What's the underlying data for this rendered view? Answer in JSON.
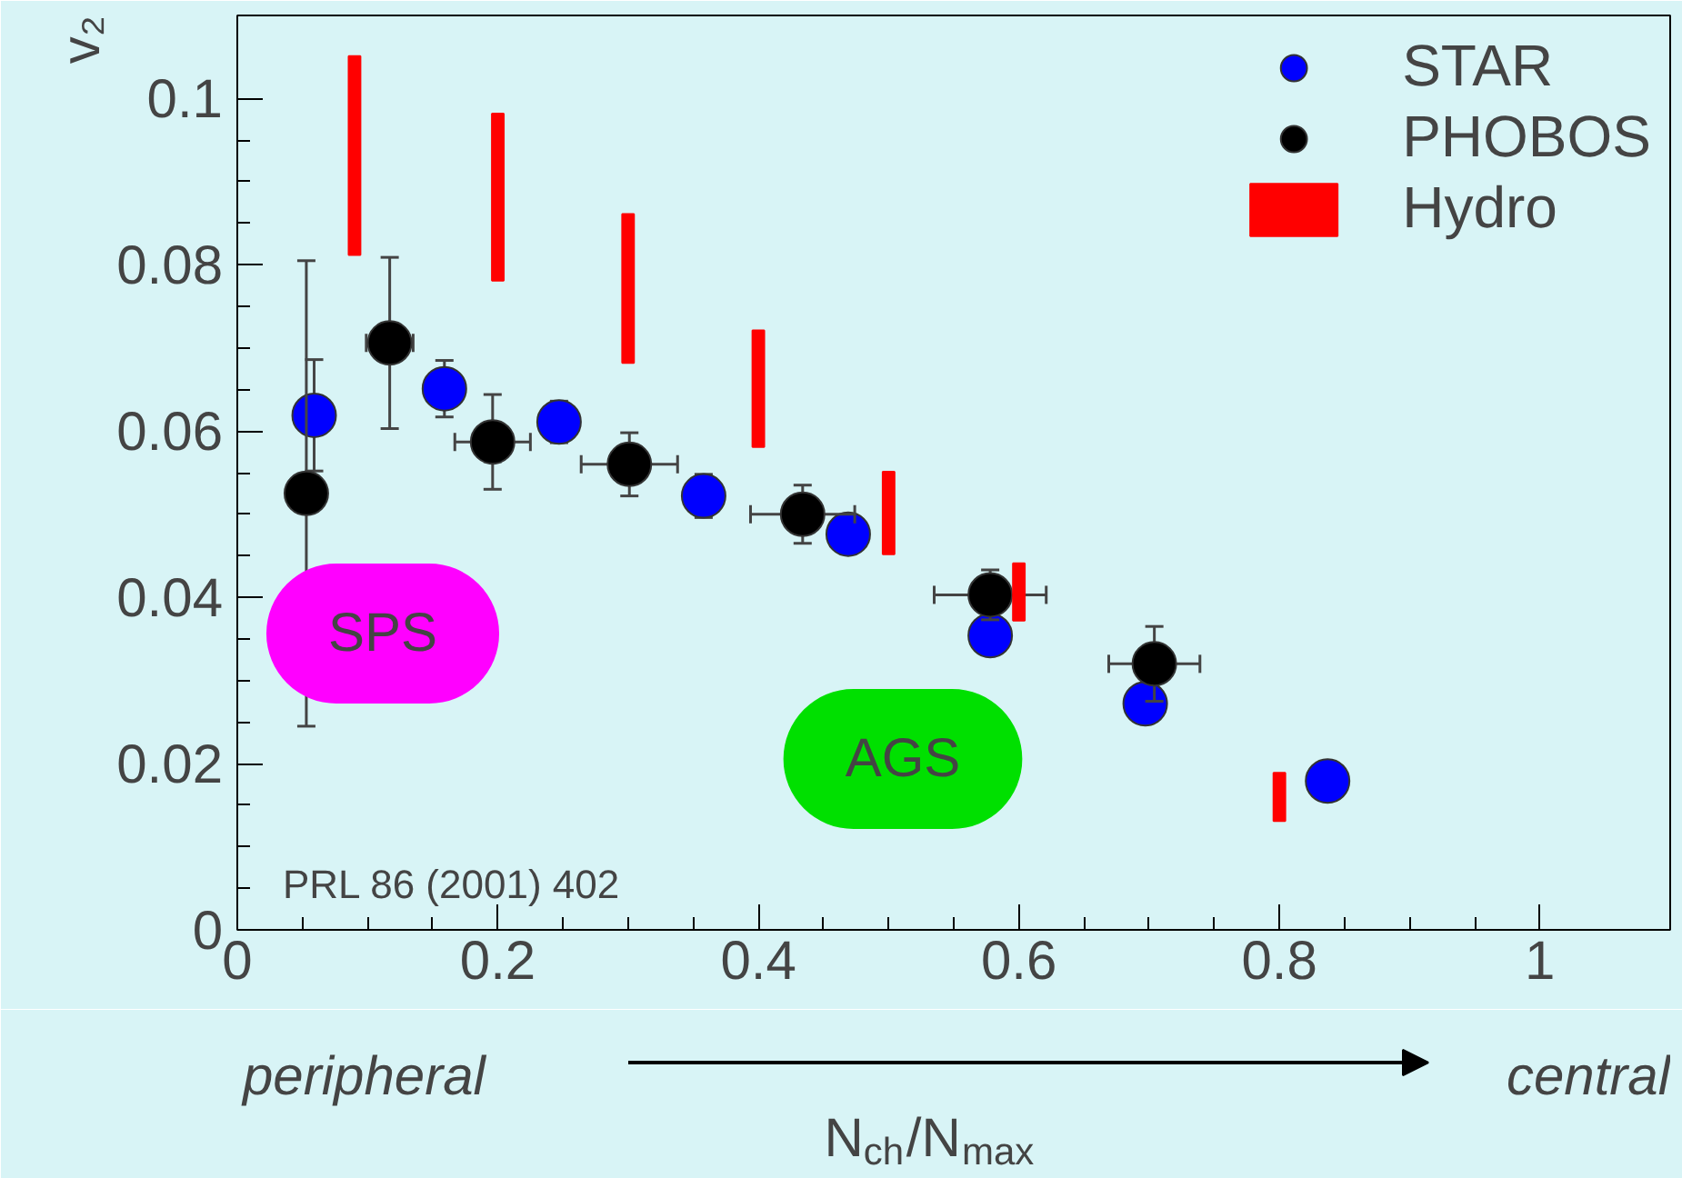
{
  "chart_data": {
    "type": "scatter",
    "xlabel": "N$_{ch}$/N$_{max}$",
    "ylabel": "v₂",
    "xlim": [
      0,
      1.1
    ],
    "ylim": [
      0,
      0.11
    ],
    "xticks": [
      0,
      0.2,
      0.4,
      0.6,
      0.8,
      1
    ],
    "yticks": [
      0,
      0.02,
      0.04,
      0.06,
      0.08,
      0.1
    ],
    "grid": false,
    "legend": "top right",
    "marker": "circle",
    "series": [
      {
        "name": "STAR",
        "color": "#0000ff",
        "x": [
          0.059,
          0.159,
          0.247,
          0.358,
          0.469,
          0.578,
          0.697,
          0.837
        ],
        "values": [
          0.0619,
          0.0651,
          0.0611,
          0.0522,
          0.0476,
          0.0354,
          0.0272,
          0.0179
        ],
        "errors": [
          0.0067,
          0.0034,
          0.0025,
          0.0026,
          null,
          null,
          null,
          null
        ]
      },
      {
        "name": "PHOBOS",
        "color": "#000000",
        "x": [
          0.053,
          0.117,
          0.196,
          0.301,
          0.434,
          0.578,
          0.704
        ],
        "values": [
          0.0525,
          0.0706,
          0.0587,
          0.056,
          0.05,
          0.0403,
          0.032
        ],
        "errors": [
          0.028,
          0.0103,
          0.0057,
          0.0038,
          0.0035,
          0.003,
          0.0045
        ],
        "xerrors": [
          0.011,
          0.018,
          0.029,
          0.037,
          0.04,
          0.043,
          0.035
        ]
      },
      {
        "name": "Hydro",
        "type": "bar",
        "color": "#ff0000",
        "x": [
          0.09,
          0.2,
          0.3,
          0.4,
          0.5,
          0.6,
          0.8
        ],
        "base": [
          0.0812,
          0.0781,
          0.0682,
          0.0581,
          0.0452,
          0.0372,
          0.0131
        ],
        "values": [
          0.0239,
          0.0201,
          0.0179,
          0.014,
          0.0099,
          0.0069,
          0.0058
        ]
      }
    ],
    "annotations": [
      "SPS",
      "AGS",
      "PRL 86 (2001) 402",
      "peripheral",
      "central"
    ]
  }
}
